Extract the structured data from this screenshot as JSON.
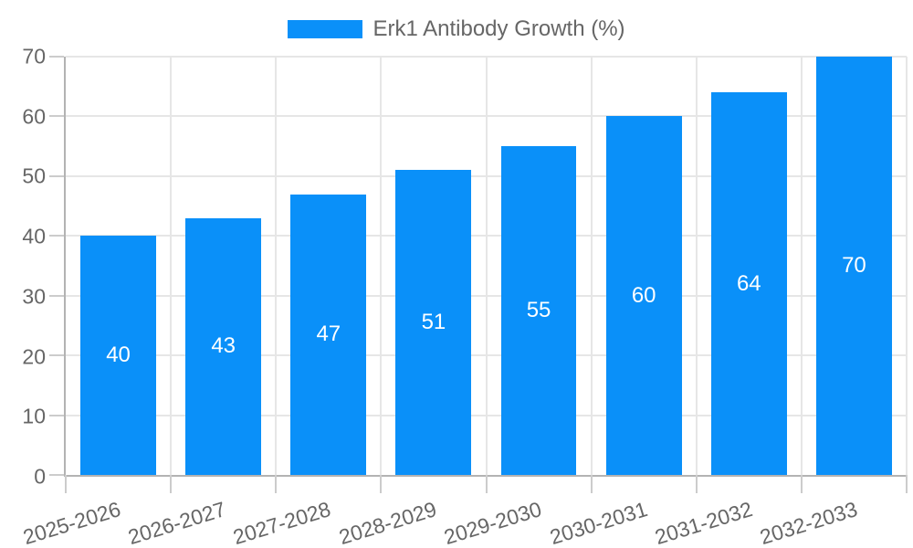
{
  "chart_data": {
    "type": "bar",
    "title": "Erk1 Antibody Growth (%)",
    "series": [
      {
        "name": "Erk1 Antibody Growth (%)",
        "values": [
          40,
          43,
          47,
          51,
          55,
          60,
          64,
          70
        ]
      }
    ],
    "categories": [
      "2025-2026",
      "2026-2027",
      "2027-2028",
      "2028-2029",
      "2029-2030",
      "2030-2031",
      "2031-2032",
      "2032-2033"
    ],
    "bar_labels": [
      "40",
      "43",
      "47",
      "51",
      "55",
      "60",
      "64",
      "70"
    ],
    "xlabel": "",
    "ylabel": "",
    "ylim": [
      0,
      70
    ],
    "yticks": [
      0,
      10,
      20,
      30,
      40,
      50,
      60,
      70
    ],
    "grid": true,
    "legend_position": "top-center",
    "x_label_rotation_deg": -17
  },
  "colors": {
    "bar": "#0a90f9",
    "grid": "#e6e6e6",
    "axis": "#b3b3b3",
    "tick": "#cccccc",
    "text": "#666666",
    "bar_label": "#ffffff",
    "background": "#ffffff"
  }
}
